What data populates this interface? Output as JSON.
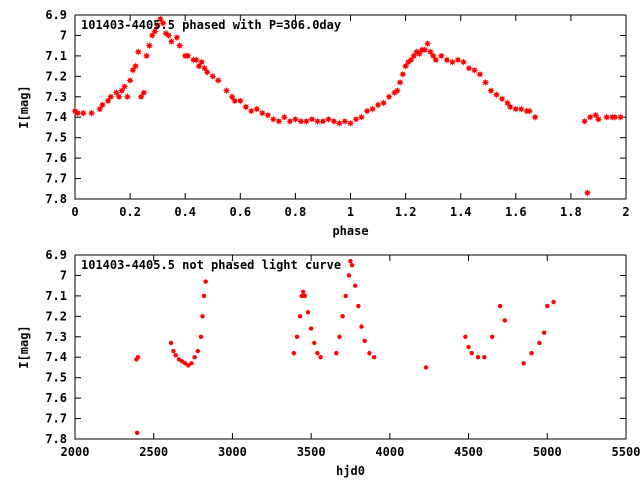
{
  "chart_data": [
    {
      "type": "scatter",
      "title": "101403-4405.5 phased with P=306.0day",
      "xlabel": "phase",
      "ylabel": "I[mag]",
      "xlim": [
        0,
        2
      ],
      "ylim": [
        7.8,
        6.9
      ],
      "y_inverted": true,
      "x_ticks": [
        "0",
        "0.2",
        "0.4",
        "0.6",
        "0.8",
        "1",
        "1.2",
        "1.4",
        "1.6",
        "1.8",
        "2"
      ],
      "y_ticks": [
        "6.9",
        "7",
        "7.1",
        "7.2",
        "7.3",
        "7.4",
        "7.5",
        "7.6",
        "7.7",
        "7.8"
      ],
      "marker_color": "#ff0000",
      "marker": "star",
      "grid": false,
      "series": [
        {
          "points": [
            [
              0.0,
              7.37
            ],
            [
              0.01,
              7.38
            ],
            [
              0.03,
              7.38
            ],
            [
              0.06,
              7.38
            ],
            [
              0.09,
              7.36
            ],
            [
              0.1,
              7.34
            ],
            [
              0.12,
              7.32
            ],
            [
              0.13,
              7.3
            ],
            [
              0.15,
              7.28
            ],
            [
              0.16,
              7.3
            ],
            [
              0.17,
              7.27
            ],
            [
              0.18,
              7.25
            ],
            [
              0.19,
              7.3
            ],
            [
              0.2,
              7.22
            ],
            [
              0.21,
              7.17
            ],
            [
              0.22,
              7.15
            ],
            [
              0.23,
              7.08
            ],
            [
              0.24,
              7.3
            ],
            [
              0.25,
              7.28
            ],
            [
              0.26,
              7.1
            ],
            [
              0.27,
              7.05
            ],
            [
              0.28,
              7.0
            ],
            [
              0.29,
              6.98
            ],
            [
              0.3,
              6.95
            ],
            [
              0.31,
              6.92
            ],
            [
              0.32,
              6.94
            ],
            [
              0.33,
              6.99
            ],
            [
              0.34,
              7.0
            ],
            [
              0.35,
              7.03
            ],
            [
              0.37,
              7.01
            ],
            [
              0.38,
              7.05
            ],
            [
              0.4,
              7.1
            ],
            [
              0.41,
              7.1
            ],
            [
              0.43,
              7.12
            ],
            [
              0.44,
              7.12
            ],
            [
              0.45,
              7.15
            ],
            [
              0.46,
              7.13
            ],
            [
              0.47,
              7.16
            ],
            [
              0.48,
              7.18
            ],
            [
              0.5,
              7.2
            ],
            [
              0.52,
              7.22
            ],
            [
              0.55,
              7.27
            ],
            [
              0.57,
              7.3
            ],
            [
              0.58,
              7.32
            ],
            [
              0.6,
              7.32
            ],
            [
              0.62,
              7.35
            ],
            [
              0.64,
              7.37
            ],
            [
              0.66,
              7.36
            ],
            [
              0.68,
              7.38
            ],
            [
              0.7,
              7.39
            ],
            [
              0.72,
              7.41
            ],
            [
              0.74,
              7.42
            ],
            [
              0.76,
              7.4
            ],
            [
              0.78,
              7.42
            ],
            [
              0.8,
              7.41
            ],
            [
              0.82,
              7.42
            ],
            [
              0.84,
              7.42
            ],
            [
              0.86,
              7.41
            ],
            [
              0.88,
              7.42
            ],
            [
              0.9,
              7.42
            ],
            [
              0.92,
              7.41
            ],
            [
              0.94,
              7.42
            ],
            [
              0.96,
              7.43
            ],
            [
              0.98,
              7.42
            ],
            [
              1.0,
              7.43
            ],
            [
              1.02,
              7.41
            ],
            [
              1.04,
              7.4
            ],
            [
              1.06,
              7.37
            ],
            [
              1.08,
              7.36
            ],
            [
              1.1,
              7.34
            ],
            [
              1.12,
              7.33
            ],
            [
              1.14,
              7.3
            ],
            [
              1.16,
              7.28
            ],
            [
              1.17,
              7.27
            ],
            [
              1.18,
              7.23
            ],
            [
              1.19,
              7.19
            ],
            [
              1.2,
              7.15
            ],
            [
              1.21,
              7.13
            ],
            [
              1.22,
              7.12
            ],
            [
              1.23,
              7.1
            ],
            [
              1.24,
              7.08
            ],
            [
              1.25,
              7.09
            ],
            [
              1.26,
              7.07
            ],
            [
              1.27,
              7.07
            ],
            [
              1.28,
              7.04
            ],
            [
              1.29,
              7.08
            ],
            [
              1.3,
              7.1
            ],
            [
              1.31,
              7.12
            ],
            [
              1.33,
              7.1
            ],
            [
              1.35,
              7.12
            ],
            [
              1.37,
              7.13
            ],
            [
              1.39,
              7.12
            ],
            [
              1.41,
              7.13
            ],
            [
              1.43,
              7.16
            ],
            [
              1.45,
              7.17
            ],
            [
              1.47,
              7.19
            ],
            [
              1.49,
              7.23
            ],
            [
              1.51,
              7.27
            ],
            [
              1.53,
              7.29
            ],
            [
              1.55,
              7.31
            ],
            [
              1.57,
              7.33
            ],
            [
              1.58,
              7.35
            ],
            [
              1.6,
              7.36
            ],
            [
              1.62,
              7.36
            ],
            [
              1.64,
              7.37
            ],
            [
              1.65,
              7.37
            ],
            [
              1.67,
              7.4
            ],
            [
              1.85,
              7.42
            ],
            [
              1.86,
              7.77
            ],
            [
              1.87,
              7.4
            ],
            [
              1.89,
              7.39
            ],
            [
              1.9,
              7.41
            ],
            [
              1.93,
              7.4
            ],
            [
              1.95,
              7.4
            ],
            [
              1.96,
              7.4
            ],
            [
              1.98,
              7.4
            ]
          ]
        }
      ]
    },
    {
      "type": "scatter",
      "title": "101403-4405.5 not phased light curve",
      "xlabel": "hjd0",
      "ylabel": "I[mag]",
      "xlim": [
        2000,
        5500
      ],
      "ylim": [
        7.8,
        6.9
      ],
      "y_inverted": true,
      "x_ticks": [
        "2000",
        "2500",
        "3000",
        "3500",
        "4000",
        "4500",
        "5000",
        "5500"
      ],
      "y_ticks": [
        "6.9",
        "7",
        "7.1",
        "7.2",
        "7.3",
        "7.4",
        "7.5",
        "7.6",
        "7.7",
        "7.8"
      ],
      "marker_color": "#ff0000",
      "marker": "dot",
      "grid": false,
      "series": [
        {
          "points": [
            [
              2390,
              7.41
            ],
            [
              2400,
              7.4
            ],
            [
              2395,
              7.77
            ],
            [
              2610,
              7.33
            ],
            [
              2625,
              7.37
            ],
            [
              2640,
              7.39
            ],
            [
              2660,
              7.41
            ],
            [
              2680,
              7.42
            ],
            [
              2700,
              7.43
            ],
            [
              2720,
              7.44
            ],
            [
              2740,
              7.43
            ],
            [
              2760,
              7.4
            ],
            [
              2780,
              7.37
            ],
            [
              2800,
              7.3
            ],
            [
              2810,
              7.2
            ],
            [
              2820,
              7.1
            ],
            [
              2830,
              7.03
            ],
            [
              3390,
              7.38
            ],
            [
              3410,
              7.3
            ],
            [
              3430,
              7.2
            ],
            [
              3440,
              7.1
            ],
            [
              3450,
              7.08
            ],
            [
              3460,
              7.1
            ],
            [
              3480,
              7.18
            ],
            [
              3500,
              7.26
            ],
            [
              3520,
              7.33
            ],
            [
              3540,
              7.38
            ],
            [
              3560,
              7.4
            ],
            [
              3660,
              7.38
            ],
            [
              3680,
              7.3
            ],
            [
              3700,
              7.2
            ],
            [
              3720,
              7.1
            ],
            [
              3740,
              7.0
            ],
            [
              3750,
              6.93
            ],
            [
              3760,
              6.95
            ],
            [
              3780,
              7.05
            ],
            [
              3800,
              7.15
            ],
            [
              3820,
              7.25
            ],
            [
              3840,
              7.32
            ],
            [
              3870,
              7.38
            ],
            [
              3900,
              7.4
            ],
            [
              4230,
              7.45
            ],
            [
              4480,
              7.3
            ],
            [
              4500,
              7.35
            ],
            [
              4520,
              7.38
            ],
            [
              4560,
              7.4
            ],
            [
              4600,
              7.4
            ],
            [
              4650,
              7.3
            ],
            [
              4700,
              7.15
            ],
            [
              4730,
              7.22
            ],
            [
              4850,
              7.43
            ],
            [
              4900,
              7.38
            ],
            [
              4950,
              7.33
            ],
            [
              4980,
              7.28
            ],
            [
              5000,
              7.15
            ],
            [
              5040,
              7.13
            ]
          ]
        }
      ]
    }
  ]
}
